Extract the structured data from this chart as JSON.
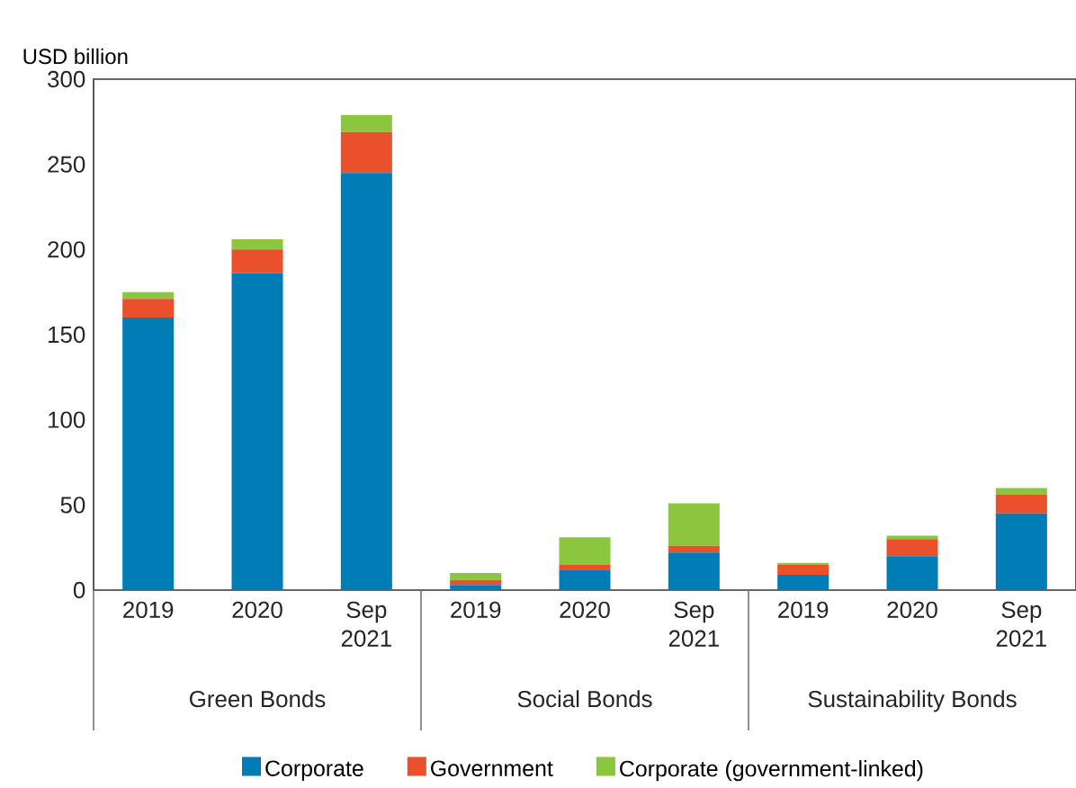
{
  "chart_data": {
    "type": "bar",
    "stacked": true,
    "ylabel": "USD billion",
    "categories": [
      "2019",
      "2020",
      "Sep 2021",
      "2019",
      "2020",
      "Sep 2021",
      "2019",
      "2020",
      "Sep 2021"
    ],
    "series": [
      {
        "name": "Corporate",
        "color": "#007db7",
        "values": [
          160,
          186,
          245,
          3,
          12,
          22,
          9,
          20,
          45
        ]
      },
      {
        "name": "Government",
        "color": "#e9502b",
        "values": [
          11,
          14,
          24,
          3,
          3,
          4,
          6,
          10,
          11
        ]
      },
      {
        "name": "Corporate (government-linked)",
        "color": "#8cc63f",
        "values": [
          4,
          6,
          10,
          4,
          16,
          25,
          1,
          2,
          4
        ]
      }
    ],
    "annotations": [
      "Green Bonds",
      "Social Bonds",
      "Sustainability Bonds"
    ],
    "ylim": [
      0,
      300
    ],
    "yticks": [
      0,
      50,
      100,
      150,
      200,
      250,
      300
    ],
    "grid": false,
    "legend": "bottom"
  }
}
